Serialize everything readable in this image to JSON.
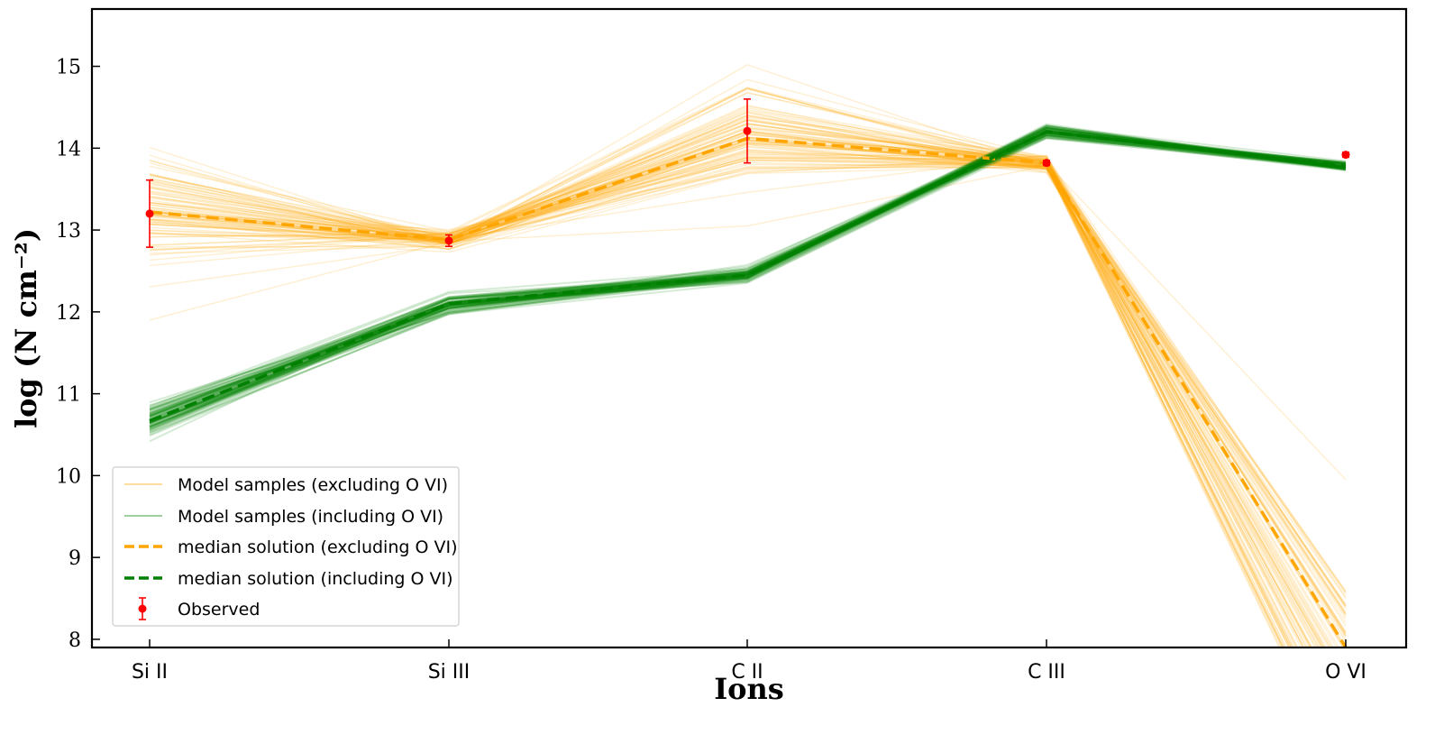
{
  "chart_data": {
    "type": "line",
    "xlabel": "Ions",
    "ylabel": "log (N cm⁻²)",
    "categories": [
      "Si II",
      "Si III",
      "C II",
      "C III",
      "O VI"
    ],
    "ylim": [
      7.9,
      15.7
    ],
    "yticks": [
      8,
      9,
      10,
      11,
      12,
      13,
      14,
      15
    ],
    "grid": false,
    "legend_position": "lower-left",
    "colors": {
      "excluding": "#FFA500",
      "including": "#008000",
      "observed": "#FF0000"
    },
    "series": [
      {
        "name": "median solution (excluding O VI)",
        "style": "dashed",
        "color": "#FFA500",
        "values": [
          13.22,
          12.88,
          14.12,
          13.82,
          7.9
        ]
      },
      {
        "name": "median solution (including O VI)",
        "style": "dashed",
        "color": "#008000",
        "values": [
          10.67,
          12.1,
          12.45,
          14.2,
          13.78
        ]
      }
    ],
    "observed": {
      "name": "Observed",
      "color": "#FF0000",
      "values": [
        13.2,
        12.87,
        14.21,
        13.82,
        13.92
      ],
      "errors": [
        0.41,
        0.07,
        0.39,
        0.03,
        0.03
      ]
    },
    "legend": [
      "Model samples (excluding O VI)",
      "Model samples (including O VI)",
      "median solution (excluding O VI)",
      "median solution (including O VI)",
      "Observed"
    ]
  }
}
